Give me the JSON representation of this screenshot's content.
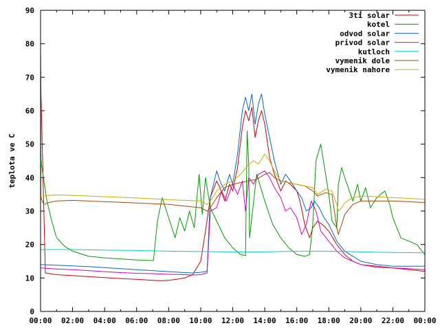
{
  "chart_data": {
    "type": "line",
    "title": "",
    "xlabel": "",
    "ylabel": "teplota ve C",
    "xlim": [
      0,
      24
    ],
    "ylim": [
      0,
      90
    ],
    "x_ticks": [
      "00:00",
      "02:00",
      "04:00",
      "06:00",
      "08:00",
      "10:00",
      "12:00",
      "14:00",
      "16:00",
      "18:00",
      "20:00",
      "22:00",
      "00:00"
    ],
    "y_ticks": [
      0,
      10,
      20,
      30,
      40,
      50,
      60,
      70,
      80,
      90
    ],
    "grid": false,
    "legend_position": "top-right",
    "series": [
      {
        "name": "3ti solar",
        "color": "#cc0000",
        "x": [
          0,
          0.02,
          0.3,
          1,
          2,
          3,
          4,
          5,
          6,
          7,
          7.5,
          8,
          8.5,
          9,
          9.5,
          10,
          10.3,
          10.6,
          11,
          11.2,
          11.5,
          11.8,
          12,
          12.3,
          12.6,
          12.8,
          13,
          13.2,
          13.4,
          13.6,
          13.8,
          14,
          14.3,
          14.6,
          15,
          15.3,
          15.6,
          16,
          16.2,
          16.5,
          16.8,
          17,
          17.3,
          17.6,
          18,
          18.5,
          19,
          19.5,
          20,
          21,
          22,
          23,
          24
        ],
        "y": [
          78,
          66,
          11.5,
          11,
          10.7,
          10.4,
          10.1,
          9.8,
          9.6,
          9.3,
          9.2,
          9.3,
          9.6,
          10,
          11,
          15,
          24,
          34,
          39,
          37,
          33,
          38,
          36,
          43,
          55,
          60,
          57,
          61,
          52,
          57,
          60,
          56,
          46,
          41,
          36,
          39,
          38,
          36,
          33,
          26,
          22,
          25,
          27,
          26,
          24,
          20,
          17,
          15,
          14,
          13.5,
          13,
          12.5,
          12
        ]
      },
      {
        "name": "kotel",
        "color": "#009900",
        "x": [
          0,
          0.05,
          0.4,
          0.7,
          1,
          1.5,
          2,
          3,
          4,
          5,
          6,
          7,
          7.05,
          7.3,
          7.6,
          8,
          8.4,
          8.7,
          9,
          9.3,
          9.6,
          9.9,
          10.1,
          10.3,
          10.6,
          11,
          11.5,
          12,
          12.5,
          12.8,
          12.9,
          13,
          13.05,
          13.5,
          14,
          14.5,
          15,
          15.5,
          16,
          16.5,
          16.8,
          17,
          17.2,
          17.5,
          17.7,
          18,
          18.2,
          18.5,
          18.6,
          18.8,
          19,
          19.5,
          19.8,
          20,
          20.3,
          20.6,
          21,
          21.5,
          21.8,
          22,
          22.5,
          23,
          23.5,
          24
        ],
        "y": [
          48,
          44,
          33,
          27,
          22,
          19.5,
          18,
          16.5,
          16,
          15.7,
          15.4,
          15.2,
          15.2,
          27,
          34,
          28,
          22,
          28,
          24,
          30,
          25,
          41,
          29,
          40,
          31,
          27,
          22,
          19,
          17,
          16.7,
          54,
          44,
          22,
          41,
          33,
          26,
          22,
          19,
          17,
          16.5,
          17,
          26,
          45,
          50,
          44,
          35,
          27,
          25,
          38,
          43,
          40,
          33,
          38,
          33,
          37,
          31,
          34,
          36,
          32,
          28,
          22,
          21,
          20,
          17
        ]
      },
      {
        "name": "odvod solar",
        "color": "#0066cc",
        "x": [
          0,
          1,
          2,
          3,
          4,
          5,
          6,
          7,
          8,
          9,
          9.5,
          10,
          10.4,
          10.6,
          11,
          11.2,
          11.5,
          11.8,
          12,
          12.3,
          12.6,
          12.8,
          13,
          13.2,
          13.4,
          13.6,
          13.8,
          14,
          14.3,
          14.6,
          15,
          15.3,
          15.6,
          16,
          16.3,
          16.6,
          16.9,
          17.1,
          17.4,
          17.7,
          18,
          18.5,
          19,
          20,
          21,
          22,
          23,
          24
        ],
        "y": [
          14,
          13.8,
          13.6,
          13.4,
          13.1,
          12.8,
          12.5,
          12.2,
          11.9,
          11.6,
          11.5,
          11.7,
          12,
          34,
          42,
          39,
          36,
          41,
          38,
          47,
          60,
          64,
          60,
          65,
          56,
          62,
          65,
          59,
          52,
          45,
          38,
          41,
          39,
          36,
          34,
          30,
          31,
          33,
          31,
          28,
          26,
          21,
          18,
          15,
          14,
          13.5,
          13.5,
          13.5
        ]
      },
      {
        "name": "privod solar",
        "color": "#cc00cc",
        "x": [
          0,
          1,
          2,
          3,
          4,
          5,
          6,
          7,
          8,
          9,
          9.5,
          10,
          10.4,
          10.6,
          11,
          11.3,
          11.6,
          12,
          12.3,
          12.6,
          12.8,
          13,
          13.3,
          13.6,
          14,
          14.3,
          14.6,
          15,
          15.3,
          15.6,
          16,
          16.3,
          16.6,
          16.9,
          17.2,
          17.5,
          18,
          18.5,
          19,
          20,
          21,
          22,
          23,
          24
        ],
        "y": [
          13,
          12.7,
          12.5,
          12.2,
          11.9,
          11.6,
          11.4,
          11.3,
          11.1,
          11,
          10.9,
          11,
          11.5,
          30,
          31,
          36,
          33,
          38,
          35,
          39,
          30,
          40,
          38,
          41,
          42,
          40,
          37,
          34,
          30,
          31,
          28,
          23,
          26,
          33,
          30,
          24,
          21,
          18,
          16,
          14,
          13.2,
          13,
          12.8,
          12.5
        ]
      },
      {
        "name": "kutloch",
        "color": "#00cccc",
        "x": [
          0,
          2,
          4,
          6,
          8,
          10,
          12,
          14,
          16,
          18,
          20,
          22,
          24
        ],
        "y": [
          18.5,
          18.5,
          18.3,
          18.2,
          18,
          17.9,
          17.8,
          17.8,
          18,
          18,
          17.8,
          17.6,
          17.5
        ]
      },
      {
        "name": "vymenik dole",
        "color": "#aa4400",
        "x": [
          0,
          0.02,
          0.2,
          0.5,
          1,
          2,
          3,
          4,
          5,
          6,
          7,
          8,
          9,
          10,
          10.4,
          10.6,
          11,
          11.5,
          12,
          12.5,
          13,
          13.5,
          14,
          14.3,
          14.6,
          15,
          15.5,
          16,
          16.5,
          17,
          17.3,
          17.8,
          18.2,
          18.5,
          18.6,
          18.8,
          19,
          19.5,
          20,
          21,
          22,
          23,
          24
        ],
        "y": [
          76,
          34,
          32,
          32.5,
          33,
          33.2,
          33,
          32.8,
          32.6,
          32.4,
          32.2,
          32,
          31.5,
          31,
          30,
          31,
          34,
          37,
          38,
          38.5,
          39,
          39.5,
          41,
          41.5,
          40,
          39,
          38.5,
          38,
          37.5,
          36,
          34.5,
          35.5,
          35,
          25,
          23,
          26,
          29,
          32,
          33,
          33,
          33,
          32.8,
          32.5
        ]
      },
      {
        "name": "vymenik nahore",
        "color": "#ccaa00",
        "x": [
          0,
          0.02,
          0.2,
          0.5,
          1,
          2,
          3,
          4,
          5,
          6,
          7,
          8,
          9,
          10,
          10.4,
          10.6,
          11,
          11.5,
          12,
          12.5,
          13,
          13.3,
          13.6,
          14,
          14.3,
          14.6,
          15,
          15.5,
          16,
          16.5,
          17,
          17.3,
          17.8,
          18.2,
          18.5,
          18.6,
          18.8,
          19,
          19.5,
          20,
          21,
          22,
          23,
          24
        ],
        "y": [
          76,
          34,
          34.5,
          34.7,
          34.8,
          34.7,
          34.5,
          34.3,
          34.1,
          33.9,
          33.7,
          33.4,
          33.2,
          33,
          32,
          33,
          36,
          38,
          39,
          41,
          44,
          45,
          44,
          47,
          45,
          42,
          39,
          38.5,
          38,
          37.5,
          37,
          35,
          36.5,
          36,
          32,
          30,
          31,
          32.5,
          34,
          34.5,
          34.3,
          34,
          33.8,
          33.5
        ]
      }
    ]
  }
}
